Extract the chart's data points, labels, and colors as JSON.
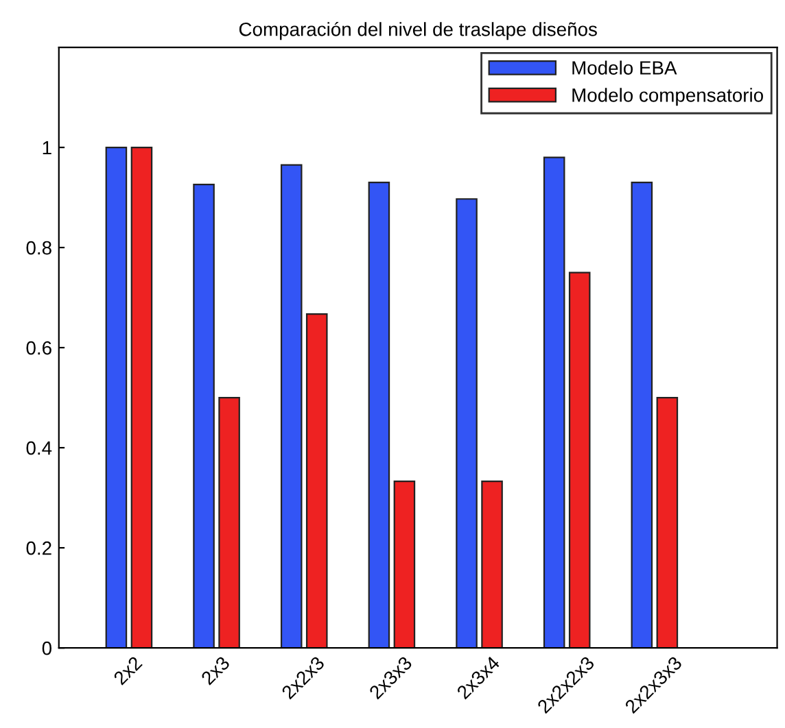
{
  "chart_data": {
    "type": "bar",
    "title": "Comparación del nivel de traslape diseños",
    "categories": [
      "2x2",
      "2x3",
      "2x2x3",
      "2x3x3",
      "2x3x4",
      "2x2x2x3",
      "2x2x3x3"
    ],
    "series": [
      {
        "name": "Modelo EBA",
        "color": "#3355f5",
        "values": [
          1.0,
          0.926,
          0.965,
          0.93,
          0.897,
          0.98,
          0.93
        ]
      },
      {
        "name": "Modelo compensatorio",
        "color": "#ee2222",
        "values": [
          1.0,
          0.5,
          0.667,
          0.333,
          0.333,
          0.75,
          0.5
        ]
      }
    ],
    "ylim": [
      0,
      1.2
    ],
    "yticks": [
      0,
      0.2,
      0.4,
      0.6,
      0.8,
      1
    ],
    "grid": false,
    "legend": "top right"
  }
}
